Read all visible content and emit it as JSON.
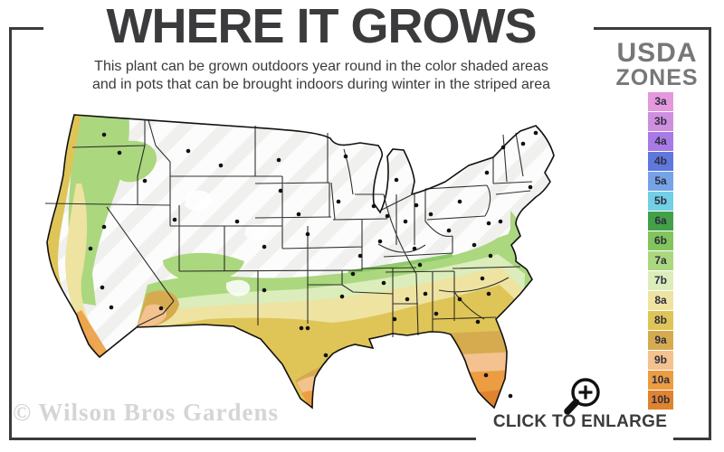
{
  "header": {
    "title": "WHERE IT GROWS",
    "subtitle_line1": "This plant can be grown outdoors year round in the color shaded areas",
    "subtitle_line2": "and in pots that can be brought indoors during winter in the striped area"
  },
  "legend": {
    "title_line1": "USDA",
    "title_line2": "ZONES",
    "zones": [
      {
        "label": "3a",
        "color": "#e598dd"
      },
      {
        "label": "3b",
        "color": "#cf8fdf"
      },
      {
        "label": "4a",
        "color": "#a87ae5"
      },
      {
        "label": "4b",
        "color": "#5f78dd"
      },
      {
        "label": "5a",
        "color": "#76a3e8"
      },
      {
        "label": "5b",
        "color": "#72cfe5"
      },
      {
        "label": "6a",
        "color": "#43a048"
      },
      {
        "label": "6b",
        "color": "#82c55c"
      },
      {
        "label": "7a",
        "color": "#abd77f"
      },
      {
        "label": "7b",
        "color": "#dcedbc"
      },
      {
        "label": "8a",
        "color": "#eee3a1"
      },
      {
        "label": "8b",
        "color": "#dfc557"
      },
      {
        "label": "9a",
        "color": "#d6ab50"
      },
      {
        "label": "9b",
        "color": "#f3c28f"
      },
      {
        "label": "10a",
        "color": "#ec9d41"
      },
      {
        "label": "10b",
        "color": "#e0832f"
      }
    ]
  },
  "map": {
    "gray_color": "#f0f0ee",
    "city_dots": [
      [
        85,
        46
      ],
      [
        102,
        66
      ],
      [
        130,
        97
      ],
      [
        85,
        148
      ],
      [
        163,
        140
      ],
      [
        70,
        172
      ],
      [
        83,
        215
      ],
      [
        93,
        237
      ],
      [
        148,
        238
      ],
      [
        232,
        142
      ],
      [
        262,
        170
      ],
      [
        262,
        218
      ],
      [
        178,
        64
      ],
      [
        214,
        80
      ],
      [
        278,
        74
      ],
      [
        280,
        108
      ],
      [
        310,
        156
      ],
      [
        300,
        134
      ],
      [
        368,
        180
      ],
      [
        348,
        225
      ],
      [
        303,
        260
      ],
      [
        310,
        260
      ],
      [
        330,
        290
      ],
      [
        360,
        200
      ],
      [
        394,
        210
      ],
      [
        406,
        250
      ],
      [
        344,
        120
      ],
      [
        352,
        70
      ],
      [
        383,
        125
      ],
      [
        398,
        136
      ],
      [
        418,
        142
      ],
      [
        446,
        134
      ],
      [
        408,
        96
      ],
      [
        430,
        124
      ],
      [
        390,
        164
      ],
      [
        428,
        172
      ],
      [
        434,
        190
      ],
      [
        440,
        222
      ],
      [
        420,
        228
      ],
      [
        452,
        244
      ],
      [
        466,
        152
      ],
      [
        478,
        228
      ],
      [
        498,
        253
      ],
      [
        507,
        312
      ],
      [
        534,
        335
      ],
      [
        494,
        168
      ],
      [
        510,
        144
      ],
      [
        512,
        180
      ],
      [
        503,
        205
      ],
      [
        510,
        222
      ],
      [
        478,
        120
      ],
      [
        508,
        88
      ],
      [
        526,
        60
      ],
      [
        548,
        56
      ],
      [
        562,
        44
      ],
      [
        556,
        104
      ],
      [
        523,
        142
      ]
    ]
  },
  "footer": {
    "watermark": "© Wilson Bros Gardens",
    "enlarge_label": "CLICK TO ENLARGE"
  },
  "colors": {
    "frame": "#3b3b3d",
    "title": "#3b3b3d",
    "legend_title": "#77777a",
    "watermark": "#d5d5d7"
  }
}
